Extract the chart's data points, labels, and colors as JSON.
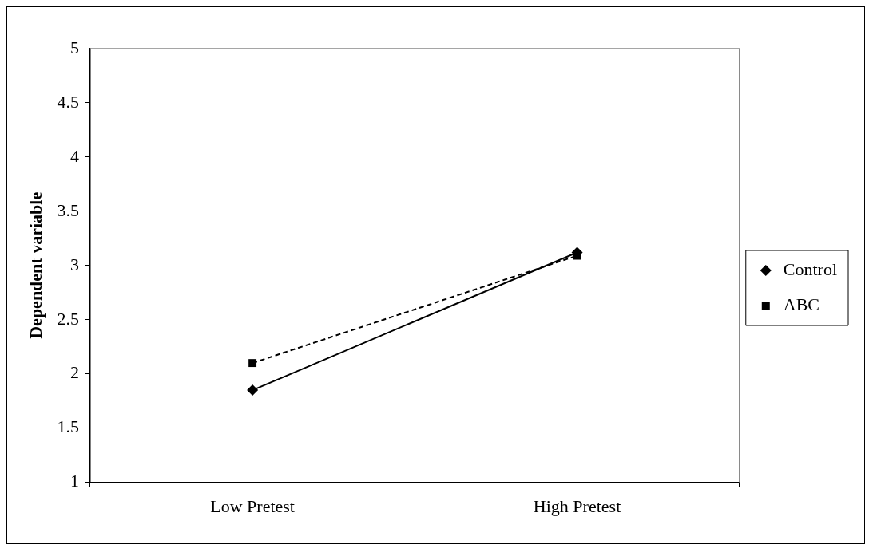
{
  "chart_data": {
    "type": "line",
    "ylabel": "Dependent variable",
    "categories": [
      "Low Pretest",
      "High Pretest"
    ],
    "ylim": [
      1,
      5
    ],
    "yticks": [
      1,
      1.5,
      2,
      2.5,
      3,
      3.5,
      4,
      4.5,
      5
    ],
    "grid": false,
    "legend": "right",
    "series": [
      {
        "name": "Control",
        "color": "#000000",
        "values": [
          1.85,
          3.12
        ],
        "marker": "diamond",
        "line_style": "solid"
      },
      {
        "name": "ABC",
        "color": "#000000",
        "values": [
          2.1,
          3.09
        ],
        "marker": "square",
        "line_style": "dashed"
      }
    ]
  }
}
